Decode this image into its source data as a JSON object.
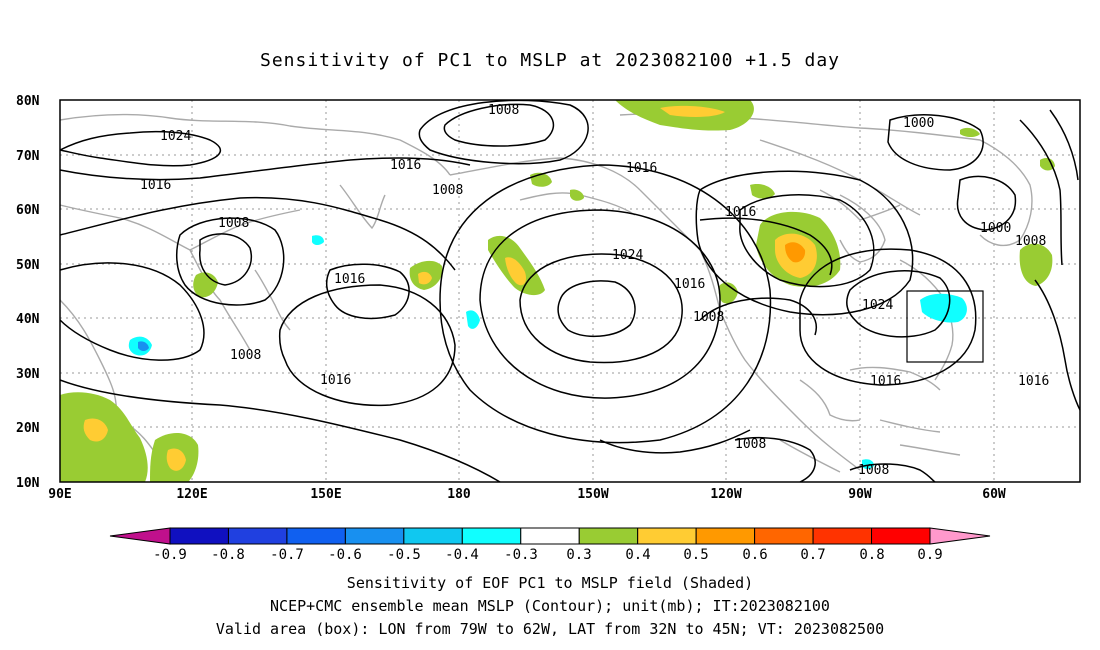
{
  "title": "Sensitivity of PC1 to MSLP at 2023082100 +1.5 day",
  "map": {
    "lat_labels": [
      "80N",
      "70N",
      "60N",
      "50N",
      "40N",
      "30N",
      "20N",
      "10N"
    ],
    "lon_labels": [
      "90E",
      "120E",
      "150E",
      "180",
      "150W",
      "120W",
      "90W",
      "60W"
    ],
    "contour_unit": "mb",
    "contour_labels": [
      "1008",
      "1024",
      "1016",
      "1016",
      "1008",
      "1008",
      "1016",
      "1008",
      "1016",
      "1024",
      "1016",
      "1016",
      "1000",
      "1000",
      "1008",
      "1024",
      "1016",
      "1016",
      "1008",
      "1008",
      "1016",
      "1008"
    ],
    "valid_box": {
      "lon_min": -79,
      "lon_max": -62,
      "lat_min": 32,
      "lat_max": 45
    }
  },
  "colorbar": {
    "ticks": [
      "-0.9",
      "-0.8",
      "-0.7",
      "-0.6",
      "-0.5",
      "-0.4",
      "-0.3",
      "0.3",
      "0.4",
      "0.5",
      "0.6",
      "0.7",
      "0.8",
      "0.9"
    ],
    "colors": [
      "#1010c0",
      "#2040e0",
      "#1060f0",
      "#1890f0",
      "#10c8f0",
      "#10ffff",
      "#ffffff",
      "#99cc33",
      "#ffcc33",
      "#ff9900",
      "#ff6600",
      "#ff3300",
      "#ff0000"
    ],
    "low_end_color": "#c0108c",
    "high_end_color": "#ff99cc"
  },
  "captions": {
    "line1": "Sensitivity of EOF PC1 to MSLP field (Shaded)",
    "line2": "NCEP+CMC ensemble mean MSLP (Contour); unit(mb); IT:2023082100",
    "line3": "Valid area (box): LON from 79W to 62W, LAT from 32N to 45N; VT: 2023082500"
  }
}
